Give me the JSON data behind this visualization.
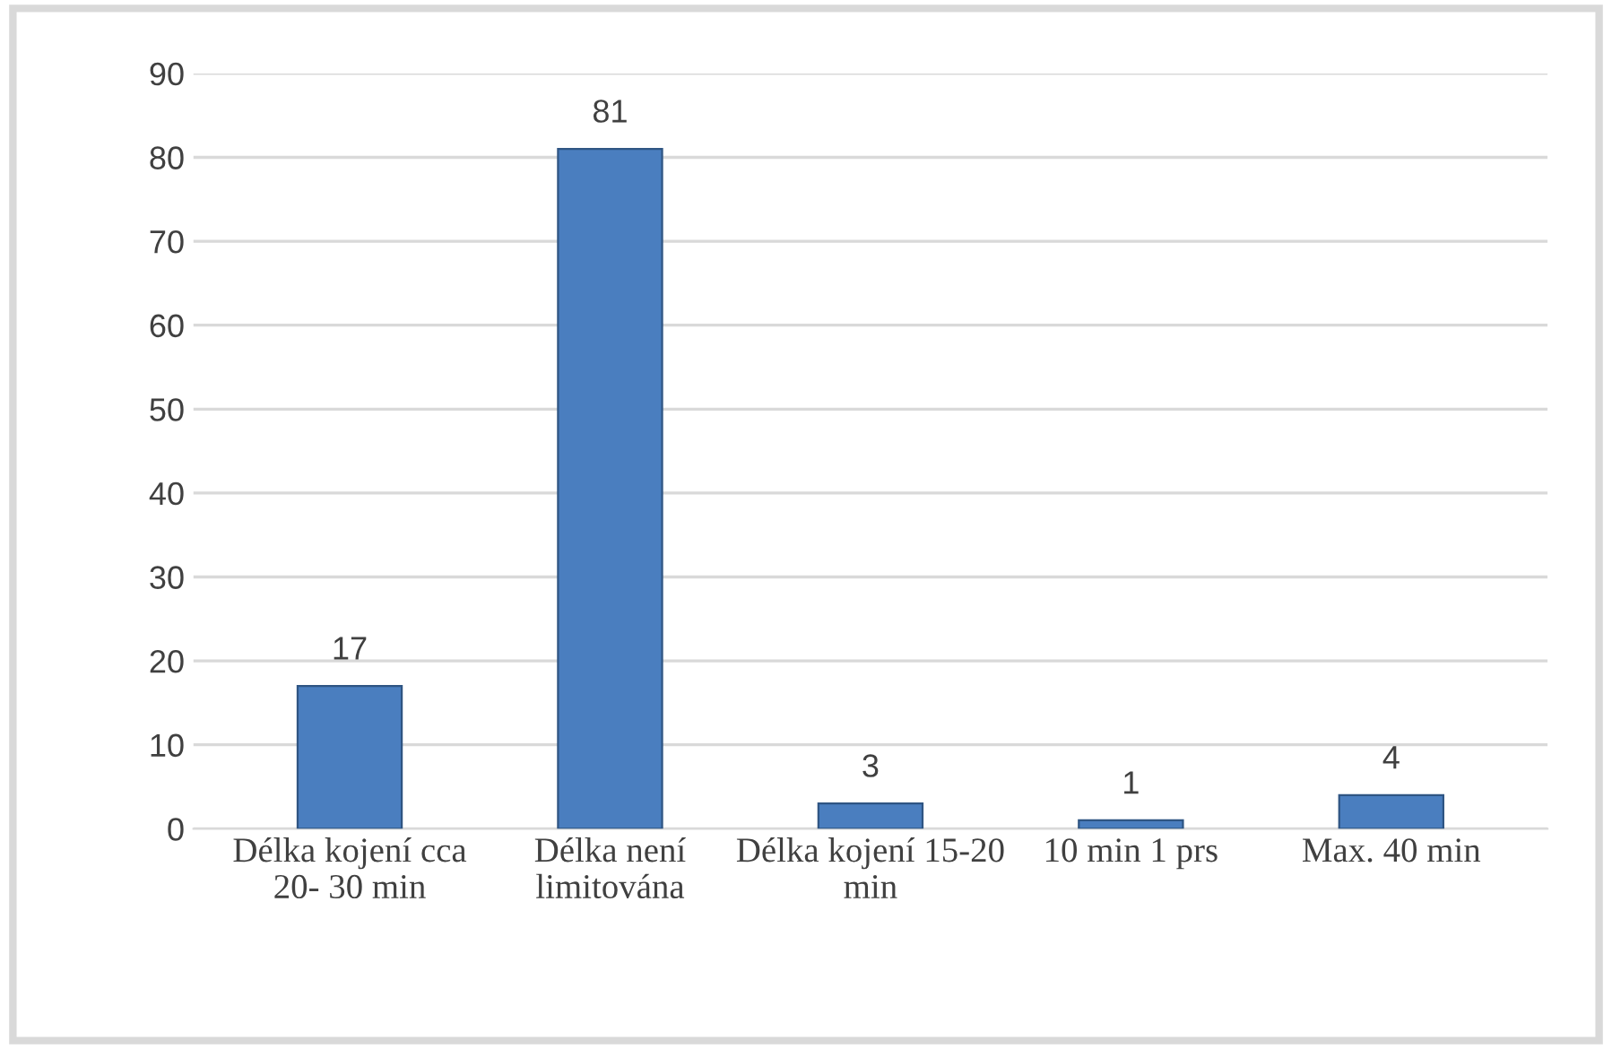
{
  "chart_data": {
    "type": "bar",
    "categories": [
      "Délka kojení cca 20- 30 min",
      "Délka není limitována",
      "Délka kojení 15-20 min",
      "10 min 1 prs",
      "Max. 40 min"
    ],
    "values": [
      17,
      81,
      3,
      1,
      4
    ],
    "color": "#4a7ebf",
    "ylim": [
      0,
      90
    ],
    "yticks": [
      0,
      10,
      20,
      30,
      40,
      50,
      60,
      70,
      80,
      90
    ],
    "grid": "y",
    "data_labels": true
  }
}
